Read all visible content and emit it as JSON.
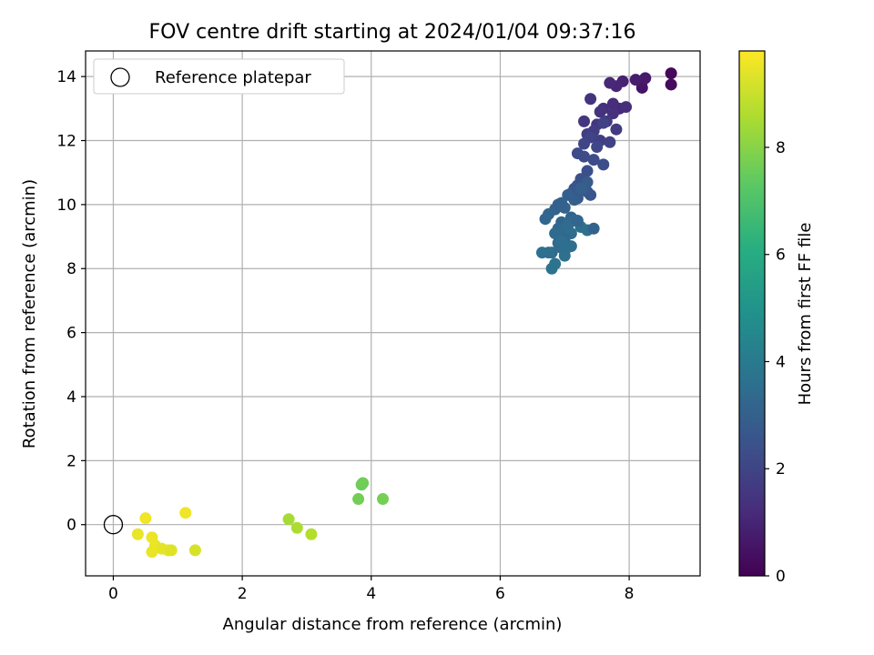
{
  "chart_data": {
    "type": "scatter",
    "title": "FOV centre drift starting at 2024/01/04 09:37:16",
    "xlabel": "Angular distance from reference (arcmin)",
    "ylabel": "Rotation from reference (arcmin)",
    "xlim": [
      -0.43,
      9.1
    ],
    "ylim": [
      -1.6,
      14.8
    ],
    "xticks": [
      0,
      2,
      4,
      6,
      8
    ],
    "yticks": [
      0,
      2,
      4,
      6,
      8,
      10,
      12,
      14
    ],
    "grid": true,
    "legend": {
      "placement": "top-left",
      "entries": [
        "Reference platepar"
      ]
    },
    "reference_point": {
      "x": 0,
      "y": 0
    },
    "colorbar": {
      "label": "Hours from first FF file",
      "colormap": "viridis",
      "range": [
        0,
        9.8
      ],
      "ticks": [
        0,
        2,
        4,
        6,
        8
      ]
    },
    "series": [
      {
        "x": [
          8.65,
          8.65,
          8.2,
          8.2,
          8.25,
          8.1,
          7.9,
          7.8,
          7.7,
          7.85,
          7.95,
          7.6,
          7.75,
          7.55,
          7.4,
          7.3,
          7.5,
          7.65,
          7.8,
          7.45,
          7.35,
          7.55,
          7.7,
          7.6,
          7.4,
          7.3,
          7.5,
          7.75,
          7.2,
          7.3,
          7.45,
          7.6,
          7.35,
          7.25,
          7.2,
          7.35,
          7.4,
          7.15,
          7.1,
          7.2,
          7.3,
          7.35,
          7.15,
          7.25,
          7.05,
          6.95,
          6.85,
          6.75,
          6.7,
          6.9,
          7.0,
          7.1,
          6.95,
          7.05,
          6.9,
          7.15,
          6.85,
          7.0,
          7.05,
          7.1,
          7.25,
          7.35,
          7.45,
          7.2,
          7.0,
          6.9,
          6.8,
          6.95,
          7.0,
          7.1,
          6.75,
          6.65,
          6.8,
          6.85,
          7.0,
          6.95
        ],
        "y": [
          14.1,
          13.75,
          13.65,
          13.85,
          13.95,
          13.9,
          13.85,
          13.7,
          13.8,
          13.0,
          13.05,
          13.0,
          12.85,
          12.9,
          13.3,
          12.6,
          12.5,
          12.6,
          12.35,
          12.3,
          12.2,
          12.0,
          11.95,
          12.55,
          12.1,
          11.9,
          11.8,
          13.15,
          11.6,
          11.5,
          11.4,
          11.25,
          11.05,
          10.8,
          10.6,
          10.4,
          10.3,
          10.5,
          10.35,
          10.2,
          10.5,
          10.7,
          10.15,
          10.5,
          10.3,
          10.05,
          9.85,
          9.7,
          9.55,
          10.0,
          9.9,
          9.6,
          9.45,
          9.4,
          9.25,
          9.5,
          9.1,
          9.15,
          9.35,
          9.1,
          9.3,
          9.2,
          9.25,
          9.5,
          8.95,
          8.8,
          8.5,
          8.65,
          8.55,
          8.7,
          8.5,
          8.5,
          8.0,
          8.15,
          8.4,
          8.85
        ],
        "hours": [
          0.2,
          0.3,
          0.5,
          0.6,
          0.7,
          0.8,
          0.9,
          1.0,
          1.1,
          1.2,
          1.3,
          1.35,
          1.4,
          1.45,
          1.5,
          1.55,
          1.6,
          1.65,
          1.7,
          1.75,
          1.8,
          1.85,
          1.9,
          1.95,
          2.0,
          2.05,
          2.1,
          1.25,
          2.2,
          2.25,
          2.3,
          2.35,
          2.4,
          2.45,
          2.5,
          2.55,
          2.6,
          2.65,
          2.7,
          2.75,
          2.8,
          2.85,
          2.9,
          2.95,
          3.0,
          3.05,
          3.1,
          3.15,
          3.2,
          3.0,
          3.05,
          3.1,
          3.15,
          3.2,
          3.25,
          3.3,
          3.35,
          3.4,
          3.45,
          3.5,
          3.55,
          3.6,
          3.1,
          3.2,
          3.3,
          3.35,
          3.4,
          3.45,
          3.5,
          3.55,
          3.6,
          3.65,
          3.7,
          3.75,
          3.6,
          3.5
        ]
      },
      {
        "x": [
          3.85,
          3.87,
          3.8,
          4.18,
          2.72,
          2.85,
          3.07
        ],
        "y": [
          1.25,
          1.3,
          0.8,
          0.8,
          0.17,
          -0.1,
          -0.3
        ],
        "hours": [
          7.6,
          7.65,
          7.7,
          7.75,
          8.5,
          8.6,
          8.7
        ]
      },
      {
        "x": [
          0.5,
          0.38,
          0.6,
          0.65,
          0.75,
          0.85,
          0.9,
          0.6,
          1.12,
          1.27
        ],
        "y": [
          0.2,
          -0.3,
          -0.4,
          -0.65,
          -0.75,
          -0.8,
          -0.8,
          -0.85,
          0.37,
          -0.8
        ],
        "hours": [
          9.6,
          9.5,
          9.55,
          9.5,
          9.45,
          9.4,
          9.35,
          9.5,
          9.6,
          9.2
        ]
      }
    ]
  }
}
